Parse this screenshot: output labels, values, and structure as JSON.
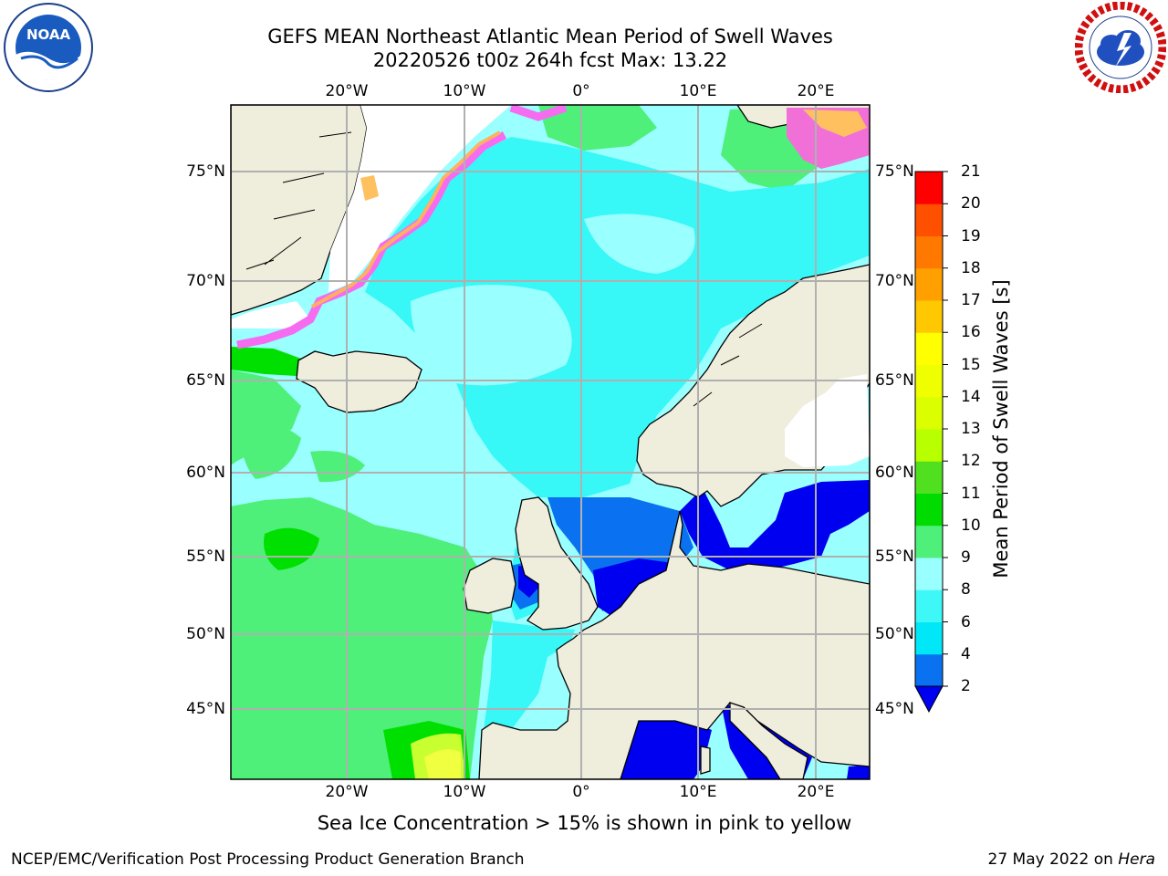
{
  "title": {
    "line1": "GEFS MEAN Northeast Atlantic Mean Period of Swell Waves",
    "line2": "20220526 t00z 264h fcst   Max: 13.22"
  },
  "map": {
    "lon_ticks": [
      "20°W",
      "10°W",
      "0°",
      "10°E",
      "20°E"
    ],
    "lat_ticks": [
      "75°N",
      "70°N",
      "65°N",
      "60°N",
      "55°N",
      "50°N",
      "45°N"
    ],
    "colors": {
      "land": "#efeddc",
      "open_ocean": "#99ffff",
      "green": "#4ef07a",
      "bright_green": "#00e000",
      "cyan": "#37f7f7",
      "blue": "#0a72f0",
      "dark_blue": "#0000f0",
      "yellow": "#f0ff40",
      "ice_pink": "#f56cf0",
      "ice_yellow": "#ffd060"
    }
  },
  "colorbar": {
    "label": "Mean Period of Swell Waves [s]",
    "tick_labels": [
      "2",
      "4",
      "6",
      "8",
      "9",
      "10",
      "11",
      "12",
      "13",
      "14",
      "15",
      "16",
      "17",
      "18",
      "19",
      "20",
      "21"
    ],
    "bins": [
      {
        "from": 2,
        "to": 4,
        "color": "#0a72f0"
      },
      {
        "from": 4,
        "to": 6,
        "color": "#00e8f8"
      },
      {
        "from": 6,
        "to": 8,
        "color": "#3ef7f7"
      },
      {
        "from": 8,
        "to": 9,
        "color": "#99ffff"
      },
      {
        "from": 9,
        "to": 10,
        "color": "#4ef07a"
      },
      {
        "from": 10,
        "to": 11,
        "color": "#00dc00"
      },
      {
        "from": 11,
        "to": 12,
        "color": "#50e020"
      },
      {
        "from": 12,
        "to": 13,
        "color": "#b8ff00"
      },
      {
        "from": 13,
        "to": 14,
        "color": "#dcff00"
      },
      {
        "from": 14,
        "to": 15,
        "color": "#f0ff00"
      },
      {
        "from": 15,
        "to": 16,
        "color": "#ffff00"
      },
      {
        "from": 16,
        "to": 17,
        "color": "#ffc800"
      },
      {
        "from": 17,
        "to": 18,
        "color": "#ffa000"
      },
      {
        "from": 18,
        "to": 19,
        "color": "#ff7800"
      },
      {
        "from": 19,
        "to": 20,
        "color": "#ff5000"
      },
      {
        "from": 20,
        "to": 21,
        "color": "#ff0000"
      }
    ],
    "under_color": "#0000f0"
  },
  "footer": {
    "note": "Sea Ice Concentration > 15% is shown in pink to yellow",
    "left": "NCEP/EMC/Verification Post Processing Product Generation Branch",
    "right_date": "27 May 2022 on ",
    "right_host": "Hera"
  }
}
